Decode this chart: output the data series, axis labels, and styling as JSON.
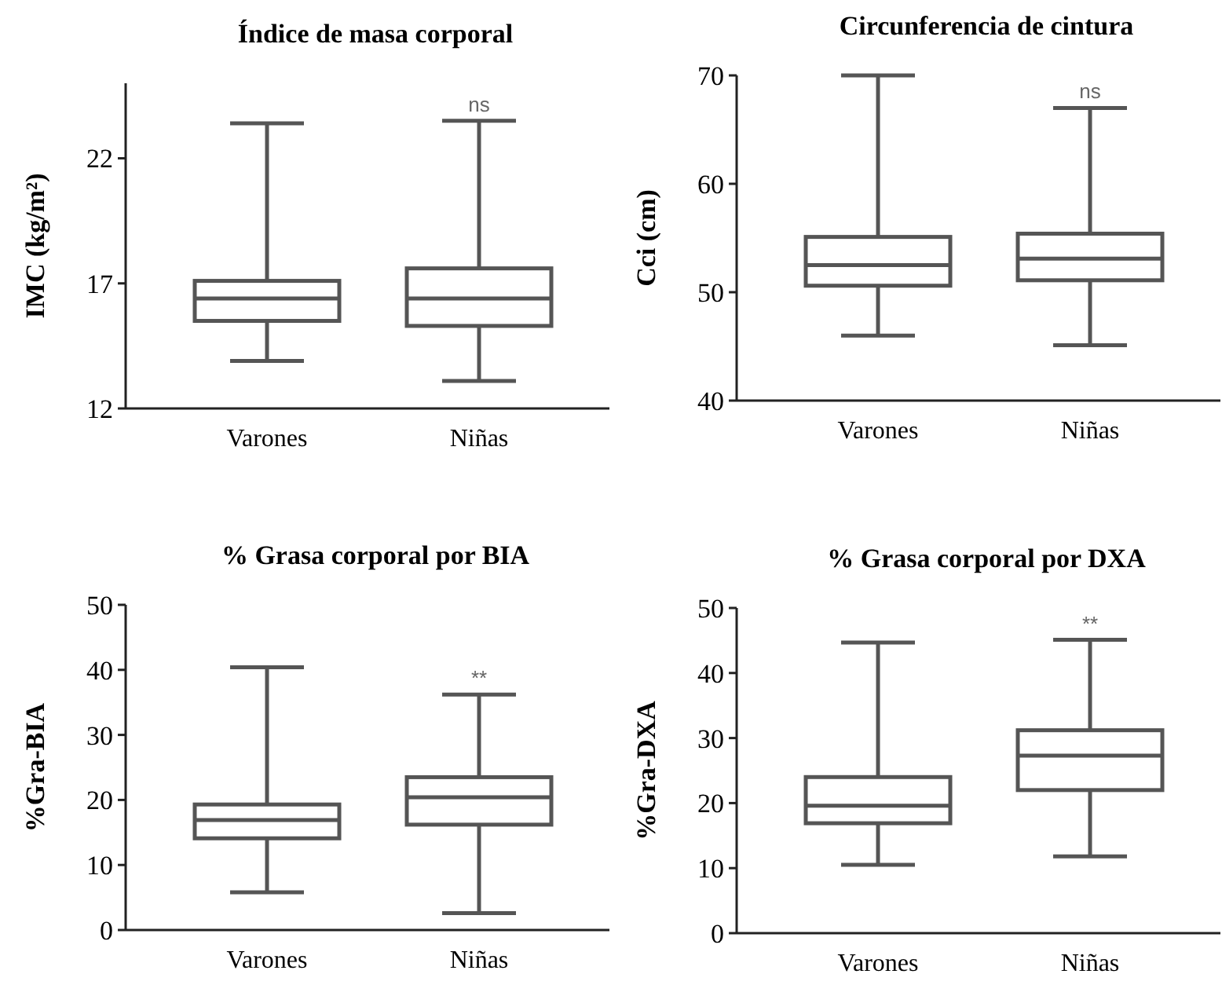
{
  "chart_data": [
    {
      "type": "box",
      "title": "Índice de masa corporal",
      "ylabel": "IMC (kg/m²)",
      "categories": [
        "Varones",
        "Niñas"
      ],
      "color": "#555555",
      "ylim": [
        12,
        25
      ],
      "yticks": [
        12,
        17,
        22
      ],
      "boxes": [
        {
          "low": 13.9,
          "q1": 15.5,
          "median": 16.4,
          "q3": 17.1,
          "high": 23.4
        },
        {
          "low": 13.1,
          "q1": 15.3,
          "median": 16.4,
          "q3": 17.6,
          "high": 23.5
        }
      ],
      "annotations": [
        "ns"
      ]
    },
    {
      "type": "box",
      "title": "Circunferencia de cintura",
      "ylabel": "Cci (cm)",
      "categories": [
        "Varones",
        "Niñas"
      ],
      "color": "#555555",
      "ylim": [
        40,
        70
      ],
      "yticks": [
        40,
        50,
        60,
        70
      ],
      "boxes": [
        {
          "low": 46,
          "q1": 50.6,
          "median": 52.5,
          "q3": 55.1,
          "high": 70
        },
        {
          "low": 45.1,
          "q1": 51.1,
          "median": 53.1,
          "q3": 55.4,
          "high": 67
        }
      ],
      "annotations": [
        "ns"
      ]
    },
    {
      "type": "box",
      "title": "% Grasa corporal por BIA",
      "ylabel": "%Gra-BIA",
      "categories": [
        "Varones",
        "Niñas"
      ],
      "color": "#555555",
      "ylim": [
        0,
        50
      ],
      "yticks": [
        0,
        10,
        20,
        30,
        40,
        50
      ],
      "boxes": [
        {
          "low": 5.8,
          "q1": 14.1,
          "median": 16.9,
          "q3": 19.3,
          "high": 40.4
        },
        {
          "low": 2.6,
          "q1": 16.2,
          "median": 20.4,
          "q3": 23.5,
          "high": 36.2
        }
      ],
      "annotations": [
        "**"
      ]
    },
    {
      "type": "box",
      "title": "% Grasa corporal por DXA",
      "ylabel": "%Gra-DXA",
      "categories": [
        "Varones",
        "Niñas"
      ],
      "color": "#555555",
      "ylim": [
        0,
        50
      ],
      "yticks": [
        0,
        10,
        20,
        30,
        40,
        50
      ],
      "boxes": [
        {
          "low": 10.5,
          "q1": 16.9,
          "median": 19.6,
          "q3": 24,
          "high": 44.7
        },
        {
          "low": 11.8,
          "q1": 22,
          "median": 27.3,
          "q3": 31.2,
          "high": 45.1
        }
      ],
      "annotations": [
        "**"
      ]
    }
  ]
}
